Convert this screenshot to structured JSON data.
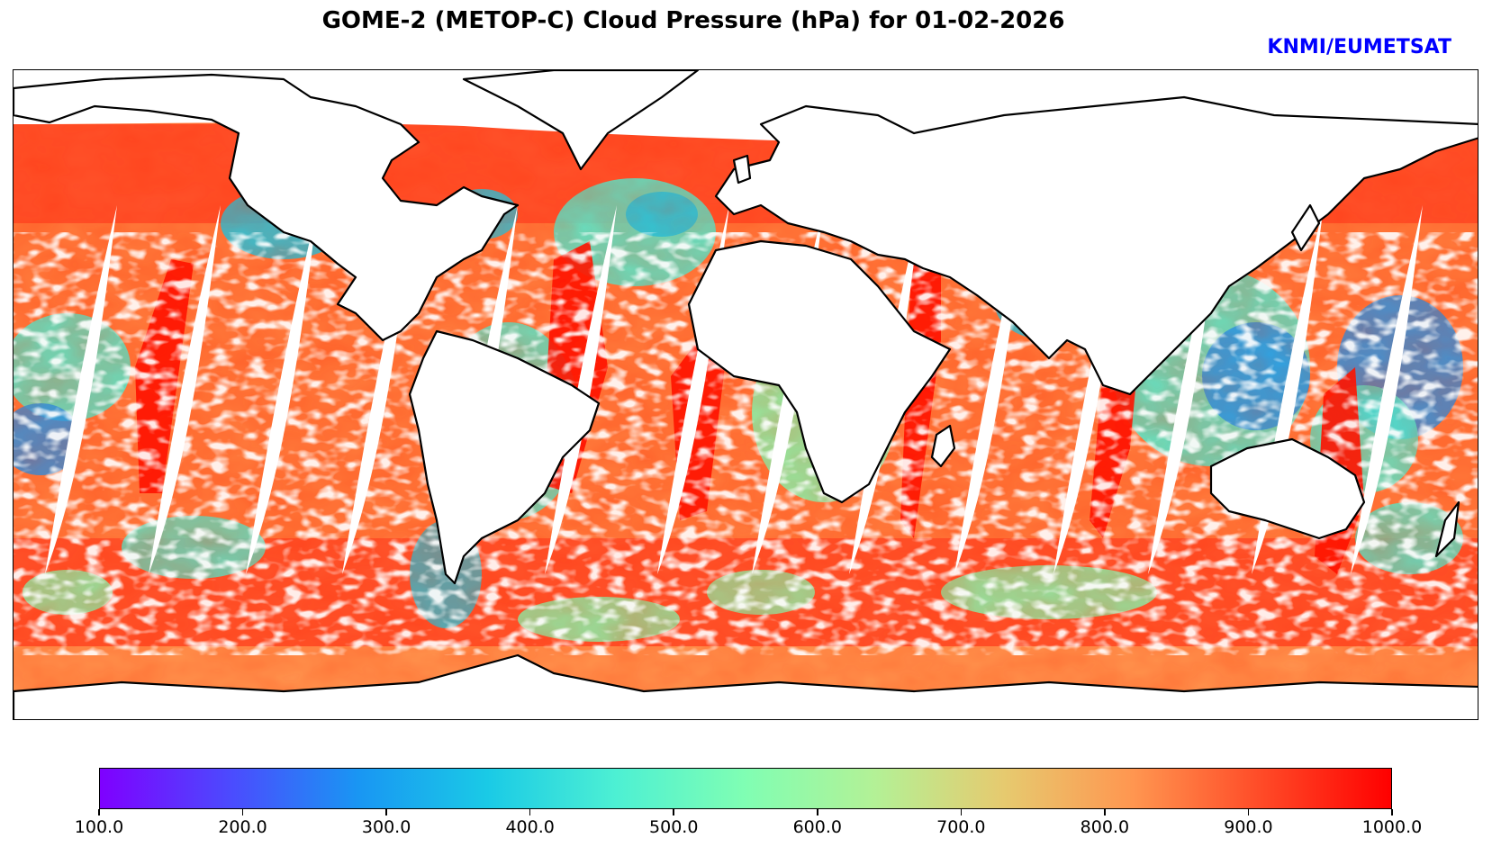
{
  "title": "GOME-2 (METOP-C) Cloud Pressure (hPa) for 01-02-2026",
  "credit": "KNMI/EUMETSAT",
  "map": {
    "variable": "Cloud Pressure",
    "units": "hPa",
    "instrument": "GOME-2",
    "platform": "METOP-C",
    "date": "01-02-2026",
    "projection": "equirectangular",
    "coastlines": true,
    "missing_data_color": "#ffffff"
  },
  "colorbar": {
    "colormap": "rainbow",
    "min": 100.0,
    "max": 1000.0,
    "stops": [
      "#7f00ff",
      "#4c4afe",
      "#1996f3",
      "#1acae6",
      "#4df0d3",
      "#80feb3",
      "#b3f196",
      "#e6ca6f",
      "#ff9650",
      "#ff4a27",
      "#ff0000"
    ],
    "tick_labels": [
      "100.0",
      "200.0",
      "300.0",
      "400.0",
      "500.0",
      "600.0",
      "700.0",
      "800.0",
      "900.0",
      "1000.0"
    ]
  }
}
